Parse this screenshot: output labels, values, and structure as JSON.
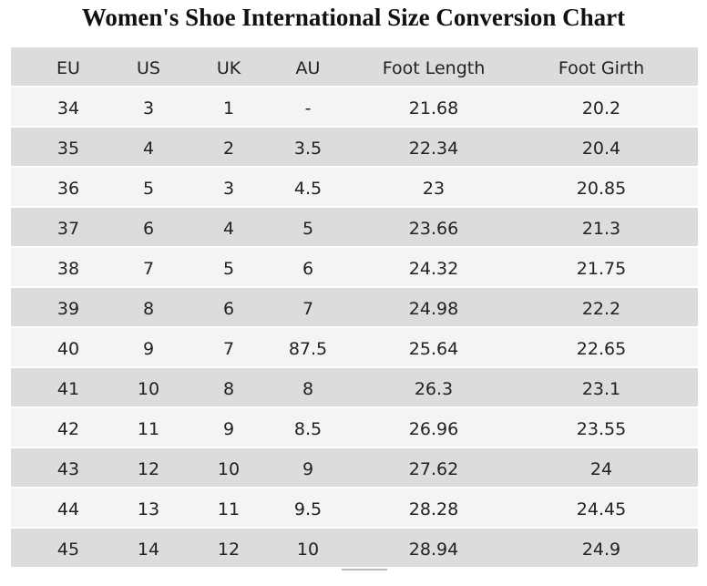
{
  "title": "Women's Shoe International Size Conversion Chart",
  "table": {
    "headers": [
      "EU",
      "US",
      "UK",
      "AU",
      "Foot Length",
      "Foot Girth"
    ],
    "rows": [
      [
        "34",
        "3",
        "1",
        "-",
        "21.68",
        "20.2"
      ],
      [
        "35",
        "4",
        "2",
        "3.5",
        "22.34",
        "20.4"
      ],
      [
        "36",
        "5",
        "3",
        "4.5",
        "23",
        "20.85"
      ],
      [
        "37",
        "6",
        "4",
        "5",
        "23.66",
        "21.3"
      ],
      [
        "38",
        "7",
        "5",
        "6",
        "24.32",
        "21.75"
      ],
      [
        "39",
        "8",
        "6",
        "7",
        "24.98",
        "22.2"
      ],
      [
        "40",
        "9",
        "7",
        "87.5",
        "25.64",
        "22.65"
      ],
      [
        "41",
        "10",
        "8",
        "8",
        "26.3",
        "23.1"
      ],
      [
        "42",
        "11",
        "9",
        "8.5",
        "26.96",
        "23.55"
      ],
      [
        "43",
        "12",
        "10",
        "9",
        "27.62",
        "24"
      ],
      [
        "44",
        "13",
        "11",
        "9.5",
        "28.28",
        "24.45"
      ],
      [
        "45",
        "14",
        "12",
        "10",
        "28.94",
        "24.9"
      ]
    ]
  }
}
